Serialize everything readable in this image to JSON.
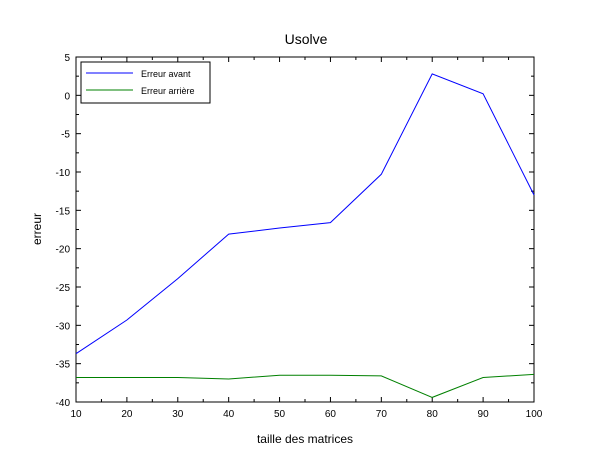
{
  "chart_data": {
    "type": "line",
    "title": "Usolve",
    "xlabel": "taille des matrices",
    "ylabel": "erreur",
    "x": [
      10,
      20,
      30,
      40,
      50,
      60,
      70,
      80,
      90,
      100
    ],
    "xlim": [
      10,
      100
    ],
    "ylim": [
      -40,
      5
    ],
    "xticks": [
      10,
      20,
      30,
      40,
      50,
      60,
      70,
      80,
      90,
      100
    ],
    "yticks": [
      5,
      0,
      -5,
      -10,
      -15,
      -20,
      -25,
      -30,
      -35,
      -40
    ],
    "grid": false,
    "legend_position": "top-left",
    "series": [
      {
        "name": "Erreur avant",
        "color": "#0000ff",
        "values": [
          -33.7,
          -29.3,
          -23.9,
          -18.1,
          -17.3,
          -16.6,
          -10.3,
          2.8,
          0.2,
          -13.0
        ]
      },
      {
        "name": "Erreur arrière",
        "color": "#008000",
        "values": [
          -36.8,
          -36.8,
          -36.8,
          -37.0,
          -36.5,
          -36.5,
          -36.6,
          -39.4,
          -36.8,
          -36.4
        ]
      }
    ]
  }
}
